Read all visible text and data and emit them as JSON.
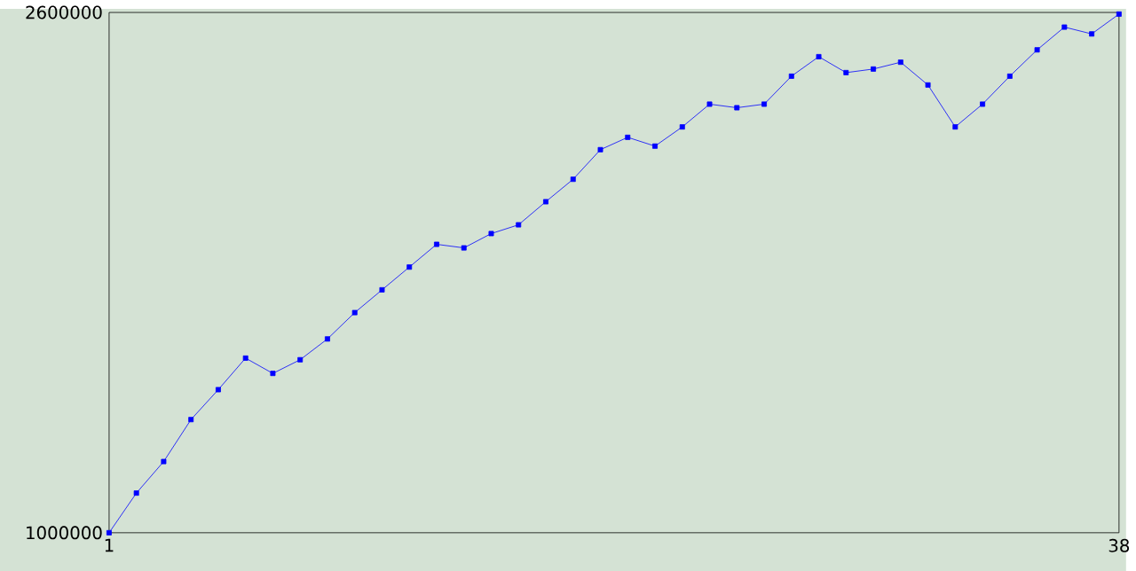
{
  "chart_data": {
    "type": "line",
    "x": [
      1,
      2,
      3,
      4,
      5,
      6,
      7,
      8,
      9,
      10,
      11,
      12,
      13,
      14,
      15,
      16,
      17,
      18,
      19,
      20,
      21,
      22,
      23,
      24,
      25,
      26,
      27,
      28,
      29,
      30,
      31,
      32,
      33,
      34,
      35,
      36,
      37,
      38
    ],
    "series": [
      {
        "color": "#0000ff",
        "values": [
          1000000,
          1122000,
          1219000,
          1348000,
          1440000,
          1537000,
          1490000,
          1532000,
          1596000,
          1677000,
          1747000,
          1817000,
          1887000,
          1876000,
          1920000,
          1947000,
          2018000,
          2087000,
          2178000,
          2216000,
          2189000,
          2248000,
          2318000,
          2307000,
          2318000,
          2404000,
          2464000,
          2415000,
          2426000,
          2447000,
          2377000,
          2248000,
          2318000,
          2404000,
          2485000,
          2555000,
          2534000,
          2595000
        ]
      }
    ],
    "xlim": [
      1,
      38
    ],
    "ylim": [
      1000000,
      2600000
    ],
    "xticks": [
      1,
      38
    ],
    "yticks": [
      1000000,
      2600000
    ],
    "marker": "square",
    "line_style": "solid"
  }
}
